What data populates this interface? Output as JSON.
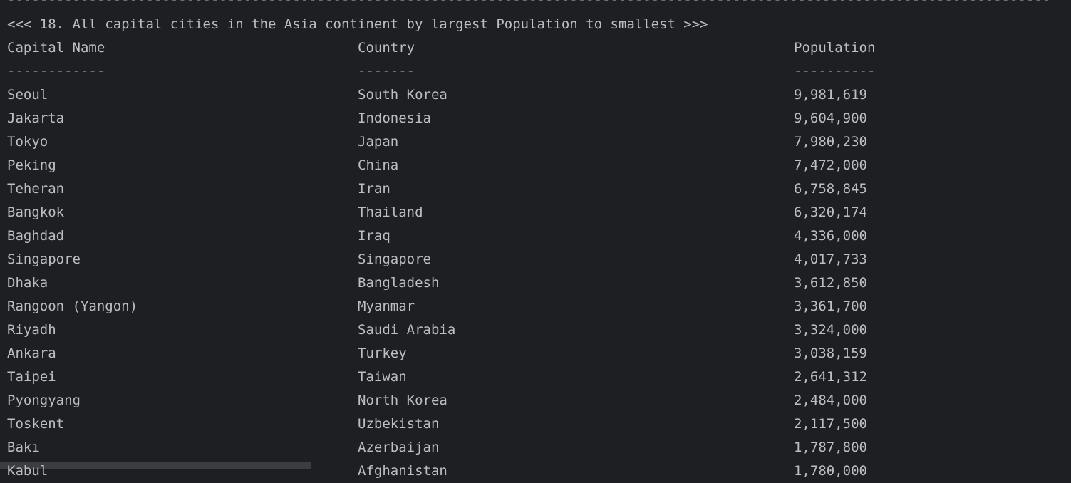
{
  "console": {
    "rule": "--------------------------------------------------------------------------------------------------------------------------------",
    "title": "<<< 18. All capital cities in the Asia continent by largest Population to smallest >>>",
    "headers": [
      "Capital Name",
      "Country",
      "Population"
    ],
    "separators": [
      "------------",
      "-------",
      "----------"
    ],
    "rows": [
      [
        "Seoul",
        "South Korea",
        "9,981,619"
      ],
      [
        "Jakarta",
        "Indonesia",
        "9,604,900"
      ],
      [
        "Tokyo",
        "Japan",
        "7,980,230"
      ],
      [
        "Peking",
        "China",
        "7,472,000"
      ],
      [
        "Teheran",
        "Iran",
        "6,758,845"
      ],
      [
        "Bangkok",
        "Thailand",
        "6,320,174"
      ],
      [
        "Baghdad",
        "Iraq",
        "4,336,000"
      ],
      [
        "Singapore",
        "Singapore",
        "4,017,733"
      ],
      [
        "Dhaka",
        "Bangladesh",
        "3,612,850"
      ],
      [
        "Rangoon (Yangon)",
        "Myanmar",
        "3,361,700"
      ],
      [
        "Riyadh",
        "Saudi Arabia",
        "3,324,000"
      ],
      [
        "Ankara",
        "Turkey",
        "3,038,159"
      ],
      [
        "Taipei",
        "Taiwan",
        "2,641,312"
      ],
      [
        "Pyongyang",
        "North Korea",
        "2,484,000"
      ],
      [
        "Toskent",
        "Uzbekistan",
        "2,117,500"
      ],
      [
        "Bakı",
        "Azerbaijan",
        "1,787,800"
      ],
      [
        "Kabul",
        "Afghanistan",
        "1,780,000"
      ]
    ]
  },
  "colors": {
    "background": "#1e1f22",
    "text": "#bcbec4",
    "selection": "#3b3d41"
  }
}
